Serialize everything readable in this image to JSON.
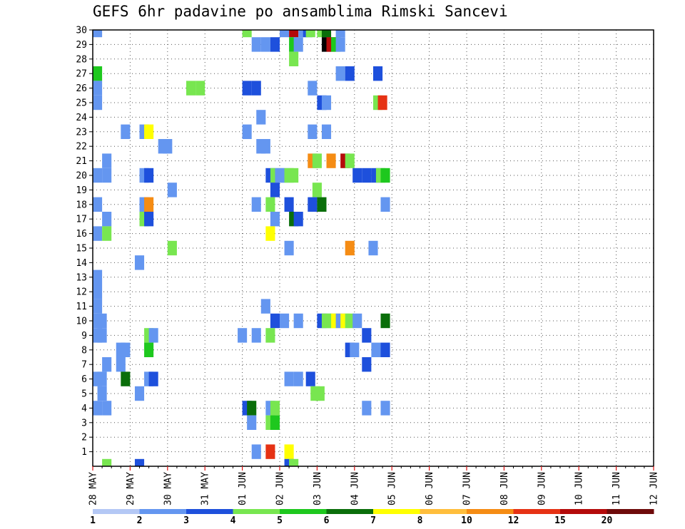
{
  "chart_data": {
    "type": "heatmap",
    "title": "GEFS 6hr padavine po ansamblima Rimski Sancevi",
    "xlabel": "",
    "ylabel": "",
    "x_ticks": [
      "28 MAY",
      "29 MAY",
      "30 MAY",
      "31 MAY",
      "01 JUN",
      "02 JUN",
      "03 JUN",
      "04 JUN",
      "05 JUN",
      "06 JUN",
      "07 JUN",
      "08 JUN",
      "09 JUN",
      "10 JUN",
      "11 JUN",
      "12 JUN"
    ],
    "y_ticks": [
      "1",
      "2",
      "3",
      "4",
      "5",
      "6",
      "7",
      "8",
      "9",
      "10",
      "11",
      "12",
      "13",
      "14",
      "15",
      "16",
      "17",
      "18",
      "19",
      "20",
      "21",
      "22",
      "23",
      "24",
      "25",
      "26",
      "27",
      "28",
      "29",
      "30"
    ],
    "y_range": [
      0,
      30
    ],
    "steps_per_day": 4,
    "grid": "dotted",
    "legend": {
      "placement": "bottom",
      "labels": [
        "1",
        "2",
        "3",
        "4",
        "5",
        "6",
        "7",
        "8",
        "10",
        "12",
        "15",
        "20"
      ],
      "colors": [
        "#b4c8f5",
        "#6496f0",
        "#1e50dc",
        "#78e650",
        "#1ec81e",
        "#0a6e0a",
        "#ffff00",
        "#ffbe3c",
        "#f58c14",
        "#e63214",
        "#b40a0a",
        "#6e0a0a"
      ]
    },
    "colors": [
      "#b4c8f5",
      "#6496f0",
      "#1e50dc",
      "#78e650",
      "#1ec81e",
      "#0a6e0a",
      "#ffff00",
      "#ffbe3c",
      "#f58c14",
      "#e63214",
      "#b40a0a",
      "#6e0a0a"
    ],
    "cells": [
      [
        0,
        30,
        1
      ],
      [
        16,
        30,
        3
      ],
      [
        20,
        30,
        1
      ],
      [
        21,
        30,
        10
      ],
      [
        22,
        30,
        1
      ],
      [
        22.5,
        30,
        2
      ],
      [
        22.8,
        30,
        3
      ],
      [
        24,
        30,
        3
      ],
      [
        24.5,
        30,
        5
      ],
      [
        26,
        30,
        1
      ],
      [
        17,
        29,
        1
      ],
      [
        18,
        29,
        1
      ],
      [
        19,
        29,
        2
      ],
      [
        21,
        29,
        4
      ],
      [
        21.5,
        29,
        1
      ],
      [
        24.5,
        29,
        12
      ],
      [
        25,
        29,
        10
      ],
      [
        25.5,
        29,
        4
      ],
      [
        26,
        29,
        1
      ],
      [
        21,
        28,
        3
      ],
      [
        0,
        27,
        4
      ],
      [
        26,
        27,
        1
      ],
      [
        27,
        27,
        2
      ],
      [
        30,
        27,
        2
      ],
      [
        0,
        26,
        1
      ],
      [
        10,
        26,
        3
      ],
      [
        11,
        26,
        3
      ],
      [
        16,
        26,
        2
      ],
      [
        17,
        26,
        2
      ],
      [
        23,
        26,
        1
      ],
      [
        0,
        25,
        1
      ],
      [
        24,
        25,
        2
      ],
      [
        24.5,
        25,
        1
      ],
      [
        30,
        25,
        3
      ],
      [
        30.5,
        25,
        9
      ],
      [
        17.5,
        24,
        1
      ],
      [
        3,
        23,
        1
      ],
      [
        5,
        23,
        1
      ],
      [
        5.5,
        23,
        6
      ],
      [
        16,
        23,
        1
      ],
      [
        23,
        23,
        1
      ],
      [
        24.5,
        23,
        1
      ],
      [
        7,
        22,
        1
      ],
      [
        7.5,
        22,
        1
      ],
      [
        17.5,
        22,
        1
      ],
      [
        18,
        22,
        1
      ],
      [
        1,
        21,
        1
      ],
      [
        23,
        21,
        8
      ],
      [
        23.5,
        21,
        3
      ],
      [
        25,
        21,
        8
      ],
      [
        26.5,
        21,
        10
      ],
      [
        27,
        21,
        3
      ],
      [
        0,
        20,
        1
      ],
      [
        1,
        20,
        1
      ],
      [
        5,
        20,
        1
      ],
      [
        5.5,
        20,
        2
      ],
      [
        18.5,
        20,
        2
      ],
      [
        19,
        20,
        3
      ],
      [
        19.5,
        20,
        1
      ],
      [
        20,
        20,
        1
      ],
      [
        20.5,
        20,
        3
      ],
      [
        21,
        20,
        3
      ],
      [
        27.8,
        20,
        2
      ],
      [
        28.8,
        20,
        2
      ],
      [
        29.8,
        20,
        2
      ],
      [
        30.3,
        20,
        3
      ],
      [
        30.8,
        20,
        4
      ],
      [
        8,
        19,
        1
      ],
      [
        19,
        19,
        2
      ],
      [
        23.5,
        19,
        3
      ],
      [
        0,
        18,
        1
      ],
      [
        5,
        18,
        1
      ],
      [
        5.5,
        18,
        8
      ],
      [
        17,
        18,
        1
      ],
      [
        18.5,
        18,
        3
      ],
      [
        20.5,
        18,
        2
      ],
      [
        23,
        18,
        2
      ],
      [
        24,
        18,
        5
      ],
      [
        30.8,
        18,
        1
      ],
      [
        1,
        17,
        1
      ],
      [
        5,
        17,
        3
      ],
      [
        5.5,
        17,
        2
      ],
      [
        19,
        17,
        1
      ],
      [
        21,
        17,
        5
      ],
      [
        21.5,
        17,
        2
      ],
      [
        0,
        16,
        1
      ],
      [
        1,
        16,
        3
      ],
      [
        18.5,
        16,
        6
      ],
      [
        8,
        15,
        3
      ],
      [
        20.5,
        15,
        1
      ],
      [
        27,
        15,
        8
      ],
      [
        29.5,
        15,
        1
      ],
      [
        4.5,
        14,
        1
      ],
      [
        0,
        13,
        1
      ],
      [
        0,
        12,
        1
      ],
      [
        0,
        11,
        1
      ],
      [
        18,
        11,
        1
      ],
      [
        0,
        10,
        1
      ],
      [
        0.5,
        10,
        1
      ],
      [
        19,
        10,
        2
      ],
      [
        20,
        10,
        1
      ],
      [
        21.5,
        10,
        1
      ],
      [
        24,
        10,
        2
      ],
      [
        24.5,
        10,
        3
      ],
      [
        25,
        10,
        3
      ],
      [
        25.5,
        10,
        6
      ],
      [
        26,
        10,
        1
      ],
      [
        26.5,
        10,
        6
      ],
      [
        27,
        10,
        3
      ],
      [
        27.8,
        10,
        1
      ],
      [
        30.8,
        10,
        5
      ],
      [
        0,
        9,
        1
      ],
      [
        0.5,
        9,
        1
      ],
      [
        5.5,
        9,
        3
      ],
      [
        6,
        9,
        1
      ],
      [
        15.5,
        9,
        1
      ],
      [
        17,
        9,
        1
      ],
      [
        18.5,
        9,
        3
      ],
      [
        28.8,
        9,
        2
      ],
      [
        2.5,
        8,
        1
      ],
      [
        3,
        8,
        1
      ],
      [
        5.5,
        8,
        4
      ],
      [
        27,
        8,
        2
      ],
      [
        27.5,
        8,
        1
      ],
      [
        29.8,
        8,
        1
      ],
      [
        30.8,
        8,
        2
      ],
      [
        1,
        7,
        1
      ],
      [
        2.5,
        7,
        1
      ],
      [
        28.8,
        7,
        2
      ],
      [
        0,
        6,
        1
      ],
      [
        0.5,
        6,
        1
      ],
      [
        3,
        6,
        5
      ],
      [
        5.5,
        6,
        1
      ],
      [
        6,
        6,
        2
      ],
      [
        20.5,
        6,
        1
      ],
      [
        21.5,
        6,
        1
      ],
      [
        22.8,
        6,
        2
      ],
      [
        0.5,
        5,
        1
      ],
      [
        4.5,
        5,
        1
      ],
      [
        23.3,
        5,
        3
      ],
      [
        23.8,
        5,
        3
      ],
      [
        0,
        4,
        1
      ],
      [
        1,
        4,
        1
      ],
      [
        16,
        4,
        2
      ],
      [
        16.5,
        4,
        5
      ],
      [
        18.5,
        4,
        1
      ],
      [
        19,
        4,
        3
      ],
      [
        28.8,
        4,
        1
      ],
      [
        30.8,
        4,
        1
      ],
      [
        16.5,
        3,
        1
      ],
      [
        18.5,
        3,
        3
      ],
      [
        19,
        3,
        4
      ],
      [
        17,
        1,
        1
      ],
      [
        18.5,
        1,
        9
      ],
      [
        20.5,
        1,
        6
      ],
      [
        1,
        0,
        3
      ],
      [
        4.5,
        0,
        2
      ],
      [
        20.5,
        0,
        2
      ],
      [
        21,
        0,
        3
      ]
    ]
  }
}
